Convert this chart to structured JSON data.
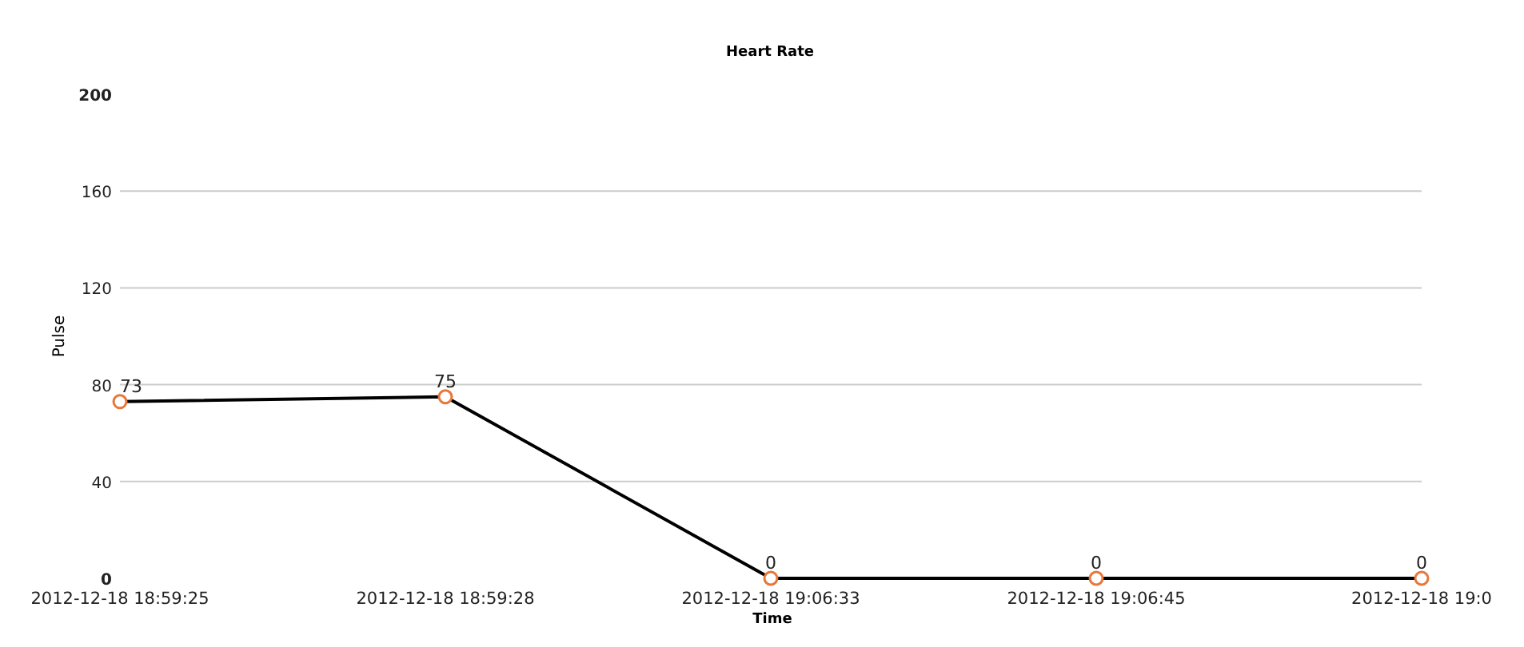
{
  "chart_data": {
    "type": "line",
    "title": "Heart Rate",
    "xlabel": "Time",
    "ylabel": "Pulse",
    "categories": [
      "2012-12-18 18:59:25",
      "2012-12-18 18:59:28",
      "2012-12-18 19:06:33",
      "2012-12-18 19:06:45",
      "2012-12-18 19:0"
    ],
    "series": [
      {
        "color": "#000000",
        "values": [
          73,
          75,
          0,
          0,
          0
        ]
      }
    ],
    "ylim": [
      0,
      200
    ],
    "yticks": [
      0,
      40,
      80,
      120,
      160,
      200
    ],
    "grid": "y",
    "marker": "circle",
    "line_style": "solid",
    "data_labels": true
  }
}
